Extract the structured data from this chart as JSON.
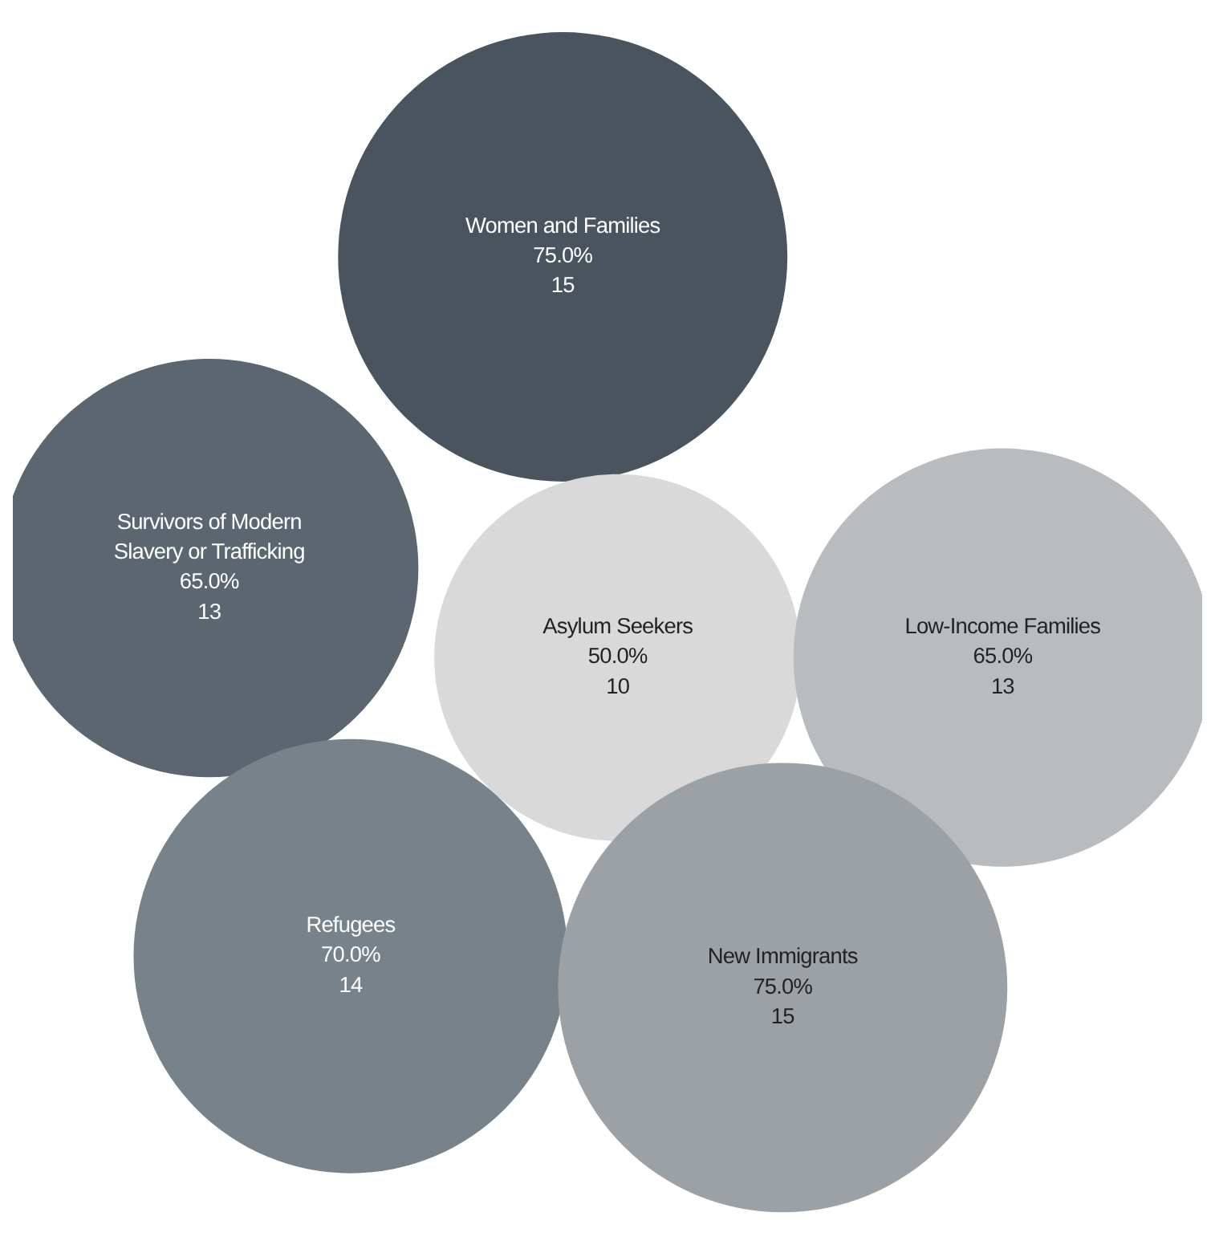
{
  "chart_data": {
    "type": "other",
    "categories": [
      "Women and Families",
      "Survivors of Modern Slavery or Trafficking",
      "Asylum Seekers",
      "Low-Income Families",
      "Refugees",
      "New Immigrants"
    ],
    "series": [
      {
        "values": [
          75,
          65,
          50,
          65,
          70,
          75
        ],
        "value_labels": [
          "75.0%",
          "65.0%",
          "50.0%",
          "65.0%",
          "70.0%",
          "75.0%"
        ],
        "colors": [
          "#4a545f",
          "#5b6670",
          "#d9d9d9",
          "#b9bcbe",
          "#78828a",
          "#9ba1a5"
        ]
      },
      {
        "values": [
          15,
          13,
          10,
          13,
          14,
          15
        ]
      }
    ],
    "data_labels": true
  }
}
